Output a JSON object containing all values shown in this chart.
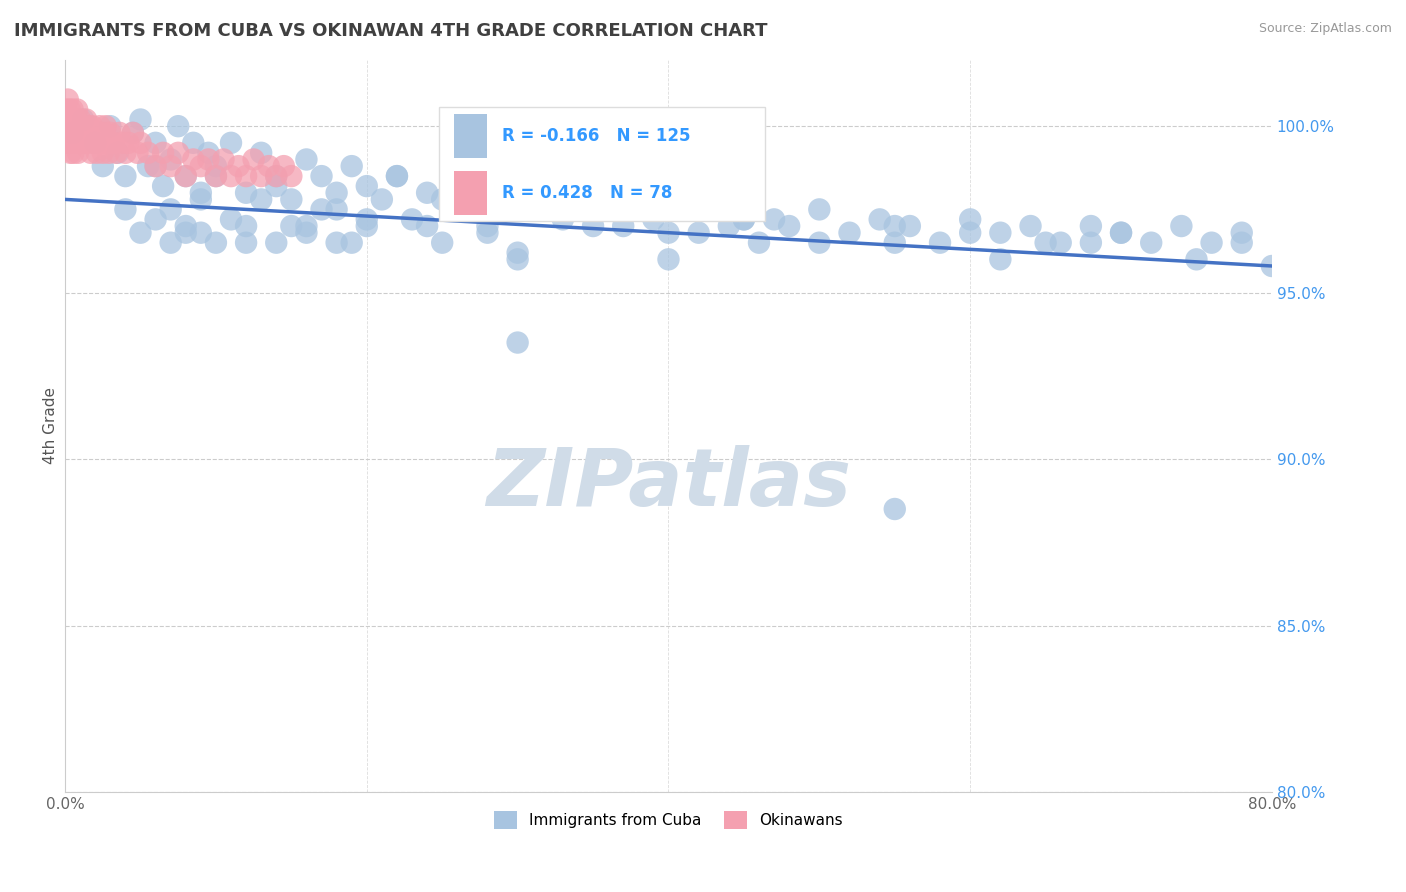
{
  "title": "IMMIGRANTS FROM CUBA VS OKINAWAN 4TH GRADE CORRELATION CHART",
  "source_text": "Source: ZipAtlas.com",
  "ylabel": "4th Grade",
  "xlim": [
    0.0,
    80.0
  ],
  "ylim": [
    80.0,
    102.0
  ],
  "yticks": [
    80.0,
    85.0,
    90.0,
    95.0,
    100.0
  ],
  "xticks": [
    0.0,
    20.0,
    40.0,
    60.0,
    80.0
  ],
  "legend_r1": "-0.166",
  "legend_n1": "125",
  "legend_r2": "0.428",
  "legend_n2": "78",
  "trend_color": "#4472c4",
  "blue_color": "#a8c4e0",
  "pink_color": "#f4a0b0",
  "watermark_color": "#d0dce8",
  "background_color": "#ffffff",
  "title_color": "#404040",
  "title_fontsize": 13,
  "tick_color_y": "#4499ee",
  "tick_color_x": "#666666",
  "blue_x": [
    0.5,
    1.2,
    2.0,
    2.5,
    3.0,
    3.5,
    4.0,
    4.5,
    5.0,
    5.5,
    6.0,
    6.5,
    7.0,
    7.5,
    8.0,
    8.5,
    9.0,
    9.5,
    10.0,
    11.0,
    12.0,
    13.0,
    14.0,
    15.0,
    16.0,
    17.0,
    18.0,
    19.0,
    20.0,
    21.0,
    22.0,
    23.0,
    24.0,
    25.0,
    26.0,
    27.0,
    28.0,
    29.0,
    30.0,
    31.0,
    32.0,
    33.0,
    34.0,
    35.0,
    36.0,
    37.0,
    38.0,
    39.0,
    40.0,
    41.0,
    42.0,
    43.0,
    44.0,
    45.0,
    46.0,
    47.0,
    48.0,
    50.0,
    52.0,
    54.0,
    56.0,
    58.0,
    60.0,
    62.0,
    64.0,
    66.0,
    68.0,
    70.0,
    72.0,
    74.0,
    76.0,
    78.0,
    6.0,
    7.0,
    8.0,
    9.0,
    10.0,
    11.0,
    12.0,
    13.0,
    14.0,
    15.0,
    16.0,
    17.0,
    18.0,
    19.0,
    20.0,
    22.0,
    24.0,
    26.0,
    28.0,
    30.0,
    35.0,
    40.0,
    45.0,
    50.0,
    55.0,
    60.0,
    65.0,
    70.0,
    4.0,
    5.0,
    6.0,
    7.0,
    8.0,
    9.0,
    10.0,
    12.0,
    14.0,
    16.0,
    18.0,
    20.0,
    25.0,
    30.0,
    35.0,
    40.0,
    45.0,
    55.0,
    62.0,
    68.0,
    75.0,
    78.0,
    30.0,
    55.0,
    80.0
  ],
  "blue_y": [
    99.8,
    100.2,
    99.5,
    98.8,
    100.0,
    99.2,
    98.5,
    99.8,
    100.2,
    98.8,
    99.5,
    98.2,
    99.0,
    100.0,
    98.5,
    99.5,
    98.0,
    99.2,
    98.8,
    99.5,
    98.0,
    99.2,
    98.5,
    97.8,
    99.0,
    98.5,
    97.5,
    98.8,
    98.2,
    97.8,
    98.5,
    97.2,
    98.0,
    97.8,
    98.2,
    97.5,
    97.0,
    98.0,
    97.5,
    97.8,
    98.0,
    97.2,
    97.8,
    98.2,
    97.5,
    97.0,
    97.8,
    97.2,
    98.0,
    97.5,
    96.8,
    97.5,
    97.0,
    97.8,
    96.5,
    97.2,
    97.0,
    97.5,
    96.8,
    97.2,
    97.0,
    96.5,
    97.2,
    96.8,
    97.0,
    96.5,
    97.0,
    96.8,
    96.5,
    97.0,
    96.5,
    96.8,
    98.8,
    97.5,
    96.8,
    97.8,
    98.5,
    97.2,
    96.5,
    97.8,
    98.2,
    97.0,
    96.8,
    97.5,
    98.0,
    96.5,
    97.2,
    98.5,
    97.0,
    97.8,
    96.8,
    96.2,
    97.5,
    96.8,
    97.2,
    96.5,
    97.0,
    96.8,
    96.5,
    96.8,
    97.5,
    96.8,
    97.2,
    96.5,
    97.0,
    96.8,
    96.5,
    97.0,
    96.5,
    97.0,
    96.5,
    97.0,
    96.5,
    96.0,
    97.0,
    96.0,
    97.2,
    96.5,
    96.0,
    96.5,
    96.0,
    96.5,
    93.5,
    88.5,
    95.8
  ],
  "pink_x": [
    0.05,
    0.08,
    0.1,
    0.12,
    0.15,
    0.18,
    0.2,
    0.25,
    0.3,
    0.35,
    0.4,
    0.45,
    0.5,
    0.55,
    0.6,
    0.65,
    0.7,
    0.75,
    0.8,
    0.85,
    0.9,
    0.95,
    1.0,
    1.1,
    1.2,
    1.3,
    1.4,
    1.5,
    1.6,
    1.7,
    1.8,
    1.9,
    2.0,
    2.1,
    2.2,
    2.3,
    2.4,
    2.5,
    2.6,
    2.7,
    2.8,
    2.9,
    3.0,
    3.2,
    3.4,
    3.6,
    3.8,
    4.0,
    4.2,
    4.5,
    4.8,
    5.0,
    5.5,
    6.0,
    6.5,
    7.0,
    7.5,
    8.0,
    8.5,
    9.0,
    9.5,
    10.0,
    10.5,
    11.0,
    11.5,
    12.0,
    12.5,
    13.0,
    13.5,
    14.0,
    14.5,
    15.0,
    0.3,
    0.6,
    0.9,
    1.2,
    1.5,
    2.0
  ],
  "pink_y": [
    100.2,
    100.5,
    99.8,
    100.2,
    99.5,
    100.8,
    100.2,
    99.8,
    100.5,
    99.2,
    100.2,
    99.8,
    100.5,
    99.2,
    100.0,
    99.5,
    100.2,
    99.8,
    100.5,
    99.2,
    100.0,
    99.5,
    100.2,
    99.8,
    100.0,
    99.5,
    100.2,
    99.8,
    100.0,
    99.2,
    100.0,
    99.5,
    99.8,
    99.2,
    99.8,
    100.0,
    99.5,
    99.2,
    99.8,
    100.0,
    99.5,
    99.2,
    99.8,
    99.5,
    99.2,
    99.8,
    99.5,
    99.2,
    99.5,
    99.8,
    99.2,
    99.5,
    99.2,
    98.8,
    99.2,
    98.8,
    99.2,
    98.5,
    99.0,
    98.8,
    99.0,
    98.5,
    99.0,
    98.5,
    98.8,
    98.5,
    99.0,
    98.5,
    98.8,
    98.5,
    98.8,
    98.5,
    99.5,
    99.8,
    99.5,
    99.8,
    99.5,
    99.8
  ],
  "trend_x": [
    0.0,
    80.0
  ],
  "trend_y": [
    97.8,
    95.8
  ]
}
